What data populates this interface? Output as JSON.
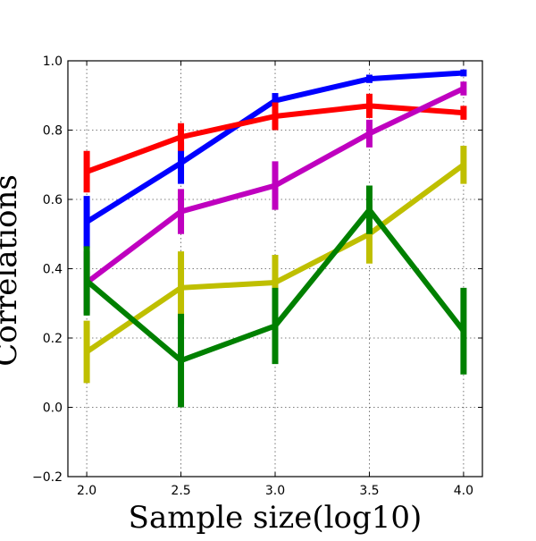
{
  "chart_data": {
    "type": "line",
    "title": "",
    "xlabel": "Sample size(log10)",
    "ylabel": "Correlations",
    "xlim": [
      1.9,
      4.1
    ],
    "ylim": [
      -0.2,
      1.0
    ],
    "x_ticks": [
      2.0,
      2.5,
      3.0,
      3.5,
      4.0
    ],
    "x_tick_labels": [
      "2.0",
      "2.5",
      "3.0",
      "3.5",
      "4.0"
    ],
    "y_ticks": [
      -0.2,
      0.0,
      0.2,
      0.4,
      0.6,
      0.8,
      1.0
    ],
    "y_tick_labels": [
      "−0.2",
      "0.0",
      "0.2",
      "0.4",
      "0.6",
      "0.8",
      "1.0"
    ],
    "grid": true,
    "legend": "none",
    "x": [
      2.0,
      2.5,
      3.0,
      3.5,
      4.0
    ],
    "series": [
      {
        "name": "blue",
        "color": "#0000ff",
        "values": [
          0.535,
          0.705,
          0.885,
          0.948,
          0.965
        ],
        "errors": [
          0.075,
          0.06,
          0.022,
          0.012,
          0.01
        ]
      },
      {
        "name": "red",
        "color": "#ff0000",
        "values": [
          0.68,
          0.78,
          0.84,
          0.87,
          0.85
        ],
        "errors": [
          0.06,
          0.04,
          0.04,
          0.035,
          0.02
        ]
      },
      {
        "name": "magenta",
        "color": "#bf00bf",
        "values": [
          0.36,
          0.565,
          0.64,
          0.79,
          0.92
        ],
        "errors": [
          0.09,
          0.065,
          0.07,
          0.04,
          0.02
        ]
      },
      {
        "name": "yellow",
        "color": "#bfbf00",
        "values": [
          0.16,
          0.345,
          0.36,
          0.5,
          0.7
        ],
        "errors": [
          0.09,
          0.105,
          0.08,
          0.085,
          0.055
        ]
      },
      {
        "name": "green",
        "color": "#008000",
        "values": [
          0.365,
          0.135,
          0.235,
          0.57,
          0.22
        ],
        "errors": [
          0.1,
          0.135,
          0.11,
          0.07,
          0.125
        ]
      }
    ]
  }
}
